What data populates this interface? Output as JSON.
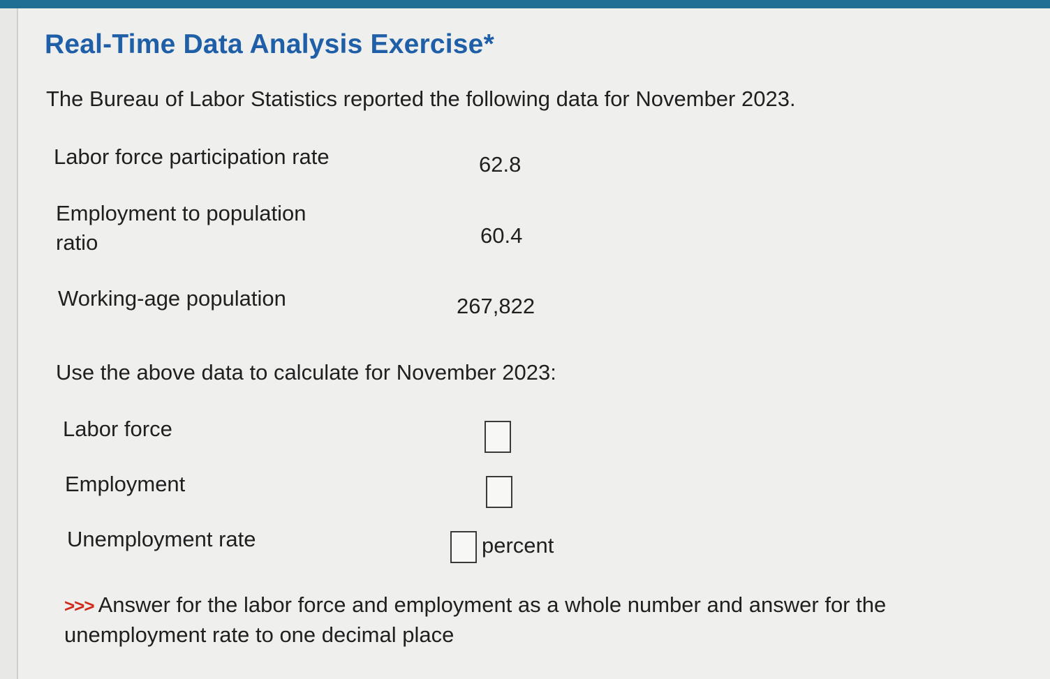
{
  "title": "Real-Time Data Analysis Exercise*",
  "intro": "The Bureau of Labor Statistics reported the following data for November 2023.",
  "data_rows": [
    {
      "label_line1": "Labor force participation rate",
      "label_line2": "",
      "value": "62.8"
    },
    {
      "label_line1": "Employment to population",
      "label_line2": "ratio",
      "value": "60.4"
    },
    {
      "label_line1": "Working-age population",
      "label_line2": "",
      "value": "267,822"
    }
  ],
  "prompt": "Use the above data to calculate for November 2023:",
  "questions": [
    {
      "label": "Labor force",
      "answer": "",
      "unit": ""
    },
    {
      "label": "Employment",
      "answer": "",
      "unit": ""
    },
    {
      "label": "Unemployment rate",
      "answer": "",
      "unit": "percent"
    }
  ],
  "note": {
    "arrows": ">>>",
    "text": "Answer for the labor force and employment as a whole number and answer for the unemployment rate to one decimal place"
  },
  "colors": {
    "title": "#1f5fa8",
    "top_bar": "#1f6f93",
    "arrows": "#d12a1a"
  }
}
